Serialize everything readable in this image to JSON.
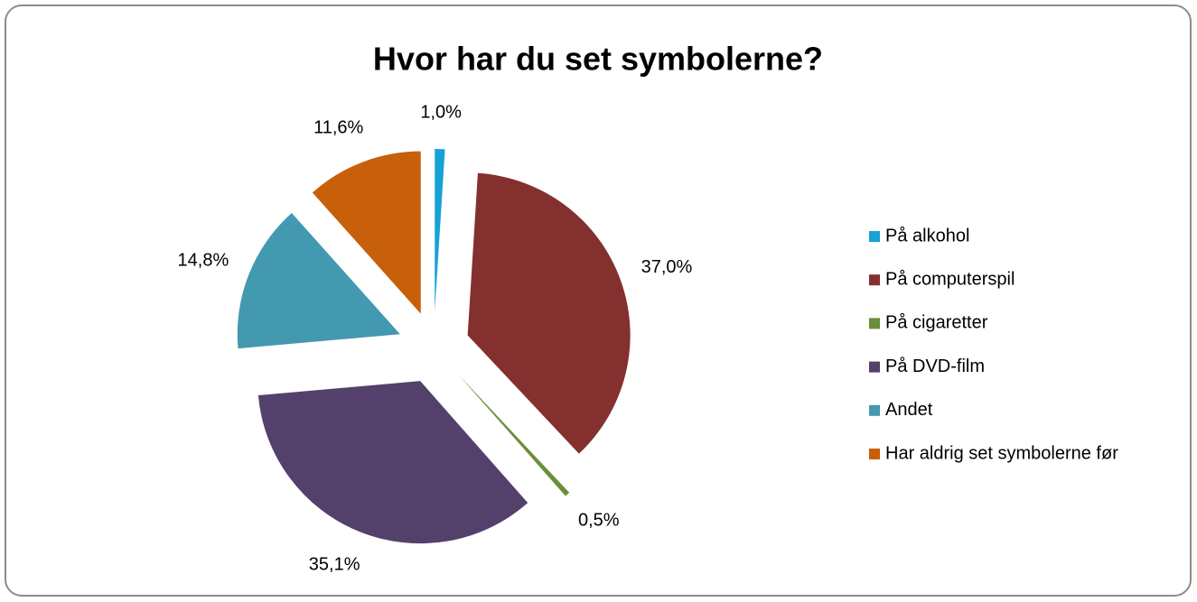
{
  "chart_data": {
    "type": "pie",
    "title": "Hvor har du set symbolerne?",
    "categories": [
      "På alkohol",
      "På computerspil",
      "På cigaretter",
      "På DVD-film",
      "Andet",
      "Har aldrig set symbolerne før"
    ],
    "values": [
      1.0,
      37.0,
      0.5,
      35.1,
      14.8,
      11.6
    ],
    "value_labels": [
      "1,0%",
      "37,0%",
      "0,5%",
      "35,1%",
      "14,8%",
      "11,6%"
    ],
    "colors": [
      "#17a2d6",
      "#84302e",
      "#6b8e3a",
      "#53406b",
      "#4399b0",
      "#c85f0a"
    ],
    "legend": "right"
  }
}
